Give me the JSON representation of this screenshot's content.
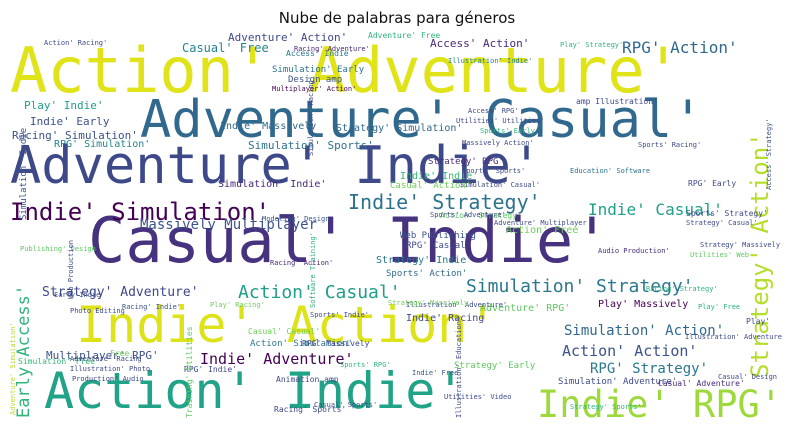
{
  "title": "Nube de palabras para géneros",
  "words": [
    {
      "text": "Action' Adventure'",
      "color": "#dfe318"
    },
    {
      "text": "Adventure' Casual'",
      "color": "#31688e"
    },
    {
      "text": "Adventure' Indie'",
      "color": "#3e4989"
    },
    {
      "text": "Casual' Indie'",
      "color": "#46327e"
    },
    {
      "text": "Indie' Action'",
      "color": "#dde318"
    },
    {
      "text": "Action' Indie'",
      "color": "#20a386"
    },
    {
      "text": "Indie' RPG'",
      "color": "#9dd93b"
    },
    {
      "text": "Indie' Simulation'",
      "color": "#440154"
    },
    {
      "text": "Indie' Strategy'",
      "color": "#2c728e"
    },
    {
      "text": "Strategy' Action'",
      "color": "#b5de2b"
    },
    {
      "text": "RPG' Action'",
      "color": "#31688e"
    },
    {
      "text": "Indie' Casual'",
      "color": "#1f9e89"
    },
    {
      "text": "Simulation' Strategy'",
      "color": "#2a788e"
    },
    {
      "text": "Action' Casual'",
      "color": "#1f9e89"
    },
    {
      "text": "Massively Multiplayer",
      "color": "#3b528b"
    },
    {
      "text": "Indie' Adventure'",
      "color": "#440154"
    },
    {
      "text": "Action' Action'",
      "color": "#3b528b"
    },
    {
      "text": "RPG' Strategy'",
      "color": "#2a788e"
    },
    {
      "text": "Simulation' Action'",
      "color": "#31688e"
    },
    {
      "text": "Early Access'",
      "color": "#2fb47c"
    },
    {
      "text": "Strategy' Adventure'",
      "color": "#3e4989"
    },
    {
      "text": "Casual' Free",
      "color": "#26828e"
    },
    {
      "text": "Adventure' Action'",
      "color": "#3e4989"
    },
    {
      "text": "Access' Action'",
      "color": "#482878"
    },
    {
      "text": "Play' Indie'",
      "color": "#1f9e89"
    },
    {
      "text": "Indie' Early",
      "color": "#3b528b"
    },
    {
      "text": "Racing' Simulation'",
      "color": "#3b528b"
    },
    {
      "text": "RPG' Simulation'",
      "color": "#26828e"
    },
    {
      "text": "Simulation' Sports'",
      "color": "#2c728e"
    },
    {
      "text": "Indie' Massively",
      "color": "#31688e"
    },
    {
      "text": "Strategy' Simulation'",
      "color": "#31688e"
    },
    {
      "text": "Indie' Indie'",
      "color": "#35b779"
    },
    {
      "text": "Simulation' Early",
      "color": "#2c728e"
    },
    {
      "text": "Design amp",
      "color": "#3b528b"
    },
    {
      "text": "Multiplayer' Action'",
      "color": "#440154"
    },
    {
      "text": "Access' Indie'",
      "color": "#2a788e"
    },
    {
      "text": "Multiplayer' RPG'",
      "color": "#3b528b"
    },
    {
      "text": "Play' Massively",
      "color": "#440154"
    },
    {
      "text": "Indie' Racing",
      "color": "#3e4989"
    },
    {
      "text": "Simulation' Adventure'",
      "color": "#3e4989"
    },
    {
      "text": "Casual' Adventure'",
      "color": "#482878"
    },
    {
      "text": "Action' Free",
      "color": "#6ece58"
    },
    {
      "text": "RPG' Casual'",
      "color": "#3e4989"
    },
    {
      "text": "Strategy' Indie'",
      "color": "#2a788e"
    },
    {
      "text": "Sports' Action'",
      "color": "#31688e"
    },
    {
      "text": "Web Publishing",
      "color": "#3b528b"
    },
    {
      "text": "Strategy' RPG'",
      "color": "#472d7b"
    },
    {
      "text": "Strategy' Early",
      "color": "#5ec962"
    },
    {
      "text": "Casual' Action'",
      "color": "#6ece58"
    },
    {
      "text": "Simulation' Indie'",
      "color": "#482878"
    },
    {
      "text": "RPG' Early",
      "color": "#3e4989"
    },
    {
      "text": "Sports' Strategy'",
      "color": "#3e4989"
    },
    {
      "text": "Adventure' RPG'",
      "color": "#5ec962"
    },
    {
      "text": "Adventure' Free",
      "color": "#2fb47c"
    },
    {
      "text": "Simulation' Indie",
      "color": "#3b528b"
    },
    {
      "text": "Racing' Sports'",
      "color": "#3e4989"
    },
    {
      "text": "Animation amp",
      "color": "#3e4989"
    },
    {
      "text": "Action' Simulation'",
      "color": "#2a788e"
    },
    {
      "text": "Casual' Casual'",
      "color": "#6ece58"
    },
    {
      "text": "Play' Strategy'",
      "color": "#2fb47c"
    },
    {
      "text": "Racing' Adventure'",
      "color": "#482878"
    },
    {
      "text": "Adventure' Simulation'",
      "color": "#b5de2b"
    },
    {
      "text": "amp Illustration'",
      "color": "#3e4989"
    },
    {
      "text": "Illustration' Indie'",
      "color": "#26828e"
    },
    {
      "text": "Illustration' Education'",
      "color": "#3e4989"
    },
    {
      "text": "Simulation' Racing'",
      "color": "#3e4989"
    },
    {
      "text": "Strategy' Casual'",
      "color": "#3e4989"
    },
    {
      "text": "Strategy' Massively",
      "color": "#3e4989"
    },
    {
      "text": "Audio Production'",
      "color": "#472d7b"
    },
    {
      "text": "Utilities' Web",
      "color": "#5ec962"
    },
    {
      "text": "Sports' Racing'",
      "color": "#3e4989"
    },
    {
      "text": "Education' Software",
      "color": "#2c728e"
    },
    {
      "text": "Sports' Early",
      "color": "#2fb47c"
    },
    {
      "text": "Software Training'",
      "color": "#2fb47c"
    },
    {
      "text": "Access' Strategy'",
      "color": "#3b528b"
    },
    {
      "text": "Action' Racing'",
      "color": "#3e4989"
    },
    {
      "text": "Play' Racing'",
      "color": "#6ece58"
    },
    {
      "text": "Racing' Indie'",
      "color": "#3b528b"
    },
    {
      "text": "RPG' Indie'",
      "color": "#3e4989"
    },
    {
      "text": "Sports' Indie'",
      "color": "#3e4989"
    },
    {
      "text": "Access' RPG'",
      "color": "#3e4989"
    },
    {
      "text": "Modeling' Design",
      "color": "#3b528b"
    },
    {
      "text": "Publishing' Design",
      "color": "#5ec962"
    },
    {
      "text": "Illustration' Adventure'",
      "color": "#3e4989"
    },
    {
      "text": "Simulation' Free",
      "color": "#35b779"
    },
    {
      "text": "RPG' Massively",
      "color": "#3e4989"
    },
    {
      "text": "Indie' Free",
      "color": "#3b528b"
    },
    {
      "text": "Utilities' Video",
      "color": "#3e4989"
    },
    {
      "text": "Strategy' Sports'",
      "color": "#2fb47c"
    },
    {
      "text": "Play' Free",
      "color": "#2fb47c"
    },
    {
      "text": "Sports' RPG'",
      "color": "#2fb47c"
    },
    {
      "text": "Training' Utilities",
      "color": "#5ec962"
    },
    {
      "text": "Action' Strategy'",
      "color": "#5ec962"
    },
    {
      "text": "Free",
      "color": "#6ece58"
    },
    {
      "text": "Play'",
      "color": "#3e4989"
    },
    {
      "text": "Illustration' Photo",
      "color": "#3e4989"
    },
    {
      "text": "Production' Audio",
      "color": "#3e4989"
    },
    {
      "text": "Adventure' Racing",
      "color": "#3e4989"
    },
    {
      "text": "Photo Editing",
      "color": "#3e4989"
    },
    {
      "text": "Early Indie",
      "color": "#3b528b"
    },
    {
      "text": "Casual' Design",
      "color": "#3e4989"
    },
    {
      "text": "Web Production",
      "color": "#3e4989"
    },
    {
      "text": "Racing' Action'",
      "color": "#482878"
    },
    {
      "text": "Massively Action'",
      "color": "#3e4989"
    },
    {
      "text": "Strategy' Massively",
      "color": "#6ece58"
    },
    {
      "text": "Sports' Adventure'",
      "color": "#3e4989"
    },
    {
      "text": "Sports' Sports'",
      "color": "#3e4989"
    },
    {
      "text": "Casual' Sports'",
      "color": "#3e4989"
    },
    {
      "text": "Adventure' Multiplayer",
      "color": "#3e4989"
    },
    {
      "text": "Utilities' Utilities'",
      "color": "#3e4989"
    },
    {
      "text": "Illustration' Adventure",
      "color": "#3e4989"
    },
    {
      "text": "Simulation' Casual'",
      "color": "#3e4989"
    },
    {
      "text": "Racing' Strategy'",
      "color": "#2fb47c"
    }
  ]
}
